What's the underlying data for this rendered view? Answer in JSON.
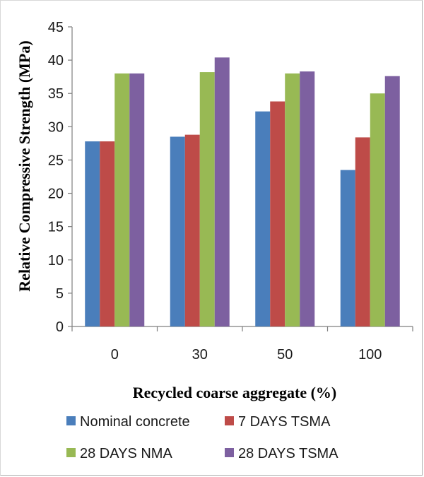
{
  "chart_data": {
    "type": "bar",
    "categories": [
      "0",
      "30",
      "50",
      "100"
    ],
    "series": [
      {
        "name": "Nominal concrete",
        "color": "#4a7ebb",
        "values": [
          27.8,
          28.5,
          32.3,
          23.5
        ]
      },
      {
        "name": "7 DAYS TSMA",
        "color": "#be4b48",
        "values": [
          27.8,
          28.8,
          33.8,
          28.4
        ]
      },
      {
        "name": "28 DAYS NMA",
        "color": "#98b954",
        "values": [
          38.0,
          38.2,
          38.0,
          35.0
        ]
      },
      {
        "name": "28 DAYS TSMA",
        "color": "#7d60a0",
        "values": [
          38.0,
          40.4,
          38.3,
          37.6
        ]
      }
    ],
    "ylim": [
      0,
      45
    ],
    "yticks": [
      "0",
      "5",
      "10",
      "15",
      "20",
      "25",
      "30",
      "35",
      "40",
      "45"
    ],
    "xlabel": "Recycled coarse aggregate (%)",
    "ylabel": "Relative Compressive Strength (MPa)",
    "grid": false,
    "legend_position": "bottom"
  }
}
